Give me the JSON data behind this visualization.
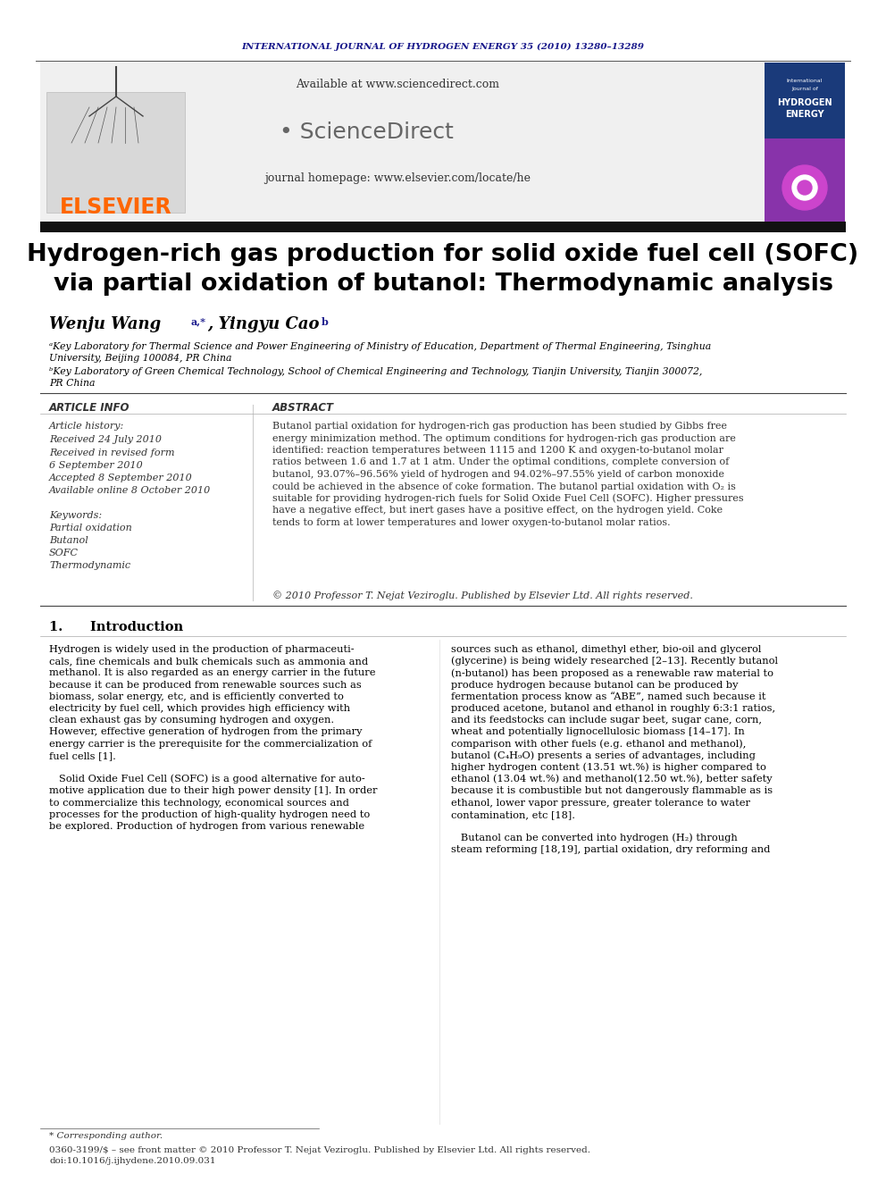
{
  "journal_header": "INTERNATIONAL JOURNAL OF HYDROGEN ENERGY 35 (2010) 13280–13289",
  "journal_header_color": "#1a1a8c",
  "available_text": "Available at www.sciencedirect.com",
  "journal_homepage": "journal homepage: www.elsevier.com/locate/he",
  "elsevier_color": "#ff6600",
  "title_line1": "Hydrogen-rich gas production for solid oxide fuel cell (SOFC)",
  "title_line2": "via partial oxidation of butanol: Thermodynamic analysis",
  "title_color": "#000000",
  "article_info_label": "ARTICLE INFO",
  "article_history_label": "Article history:",
  "keywords_label": "Keywords:",
  "keywords": [
    "Partial oxidation",
    "Butanol",
    "SOFC",
    "Thermodynamic"
  ],
  "abstract_label": "ABSTRACT",
  "abstract_text": "Butanol partial oxidation for hydrogen-rich gas production has been studied by Gibbs free\nenergy minimization method. The optimum conditions for hydrogen-rich gas production are\nidentified: reaction temperatures between 1115 and 1200 K and oxygen-to-butanol molar\nratios between 1.6 and 1.7 at 1 atm. Under the optimal conditions, complete conversion of\nbutanol, 93.07%–96.56% yield of hydrogen and 94.02%–97.55% yield of carbon monoxide\ncould be achieved in the absence of coke formation. The butanol partial oxidation with O₂ is\nsuitable for providing hydrogen-rich fuels for Solid Oxide Fuel Cell (SOFC). Higher pressures\nhave a negative effect, but inert gases have a positive effect, on the hydrogen yield. Coke\ntends to form at lower temperatures and lower oxygen-to-butanol molar ratios.",
  "copyright_text": "© 2010 Professor T. Nejat Veziroglu. Published by Elsevier Ltd. All rights reserved.",
  "section1_title": "1.      Introduction",
  "footnote_star": "* Corresponding author.",
  "issn": "0360-3199/$ – see front matter © 2010 Professor T. Nejat Veziroglu. Published by Elsevier Ltd. All rights reserved.",
  "doi": "doi:10.1016/j.ijhydene.2010.09.031",
  "bg_color": "#ffffff",
  "dark_bar_color": "#1a1a1a",
  "section_label_color": "#1a1a8c",
  "col1_lines": [
    "Hydrogen is widely used in the production of pharmaceuti-",
    "cals, fine chemicals and bulk chemicals such as ammonia and",
    "methanol. It is also regarded as an energy carrier in the future",
    "because it can be produced from renewable sources such as",
    "biomass, solar energy, etc, and is efficiently converted to",
    "electricity by fuel cell, which provides high efficiency with",
    "clean exhaust gas by consuming hydrogen and oxygen.",
    "However, effective generation of hydrogen from the primary",
    "energy carrier is the prerequisite for the commercialization of",
    "fuel cells [1].",
    "",
    "   Solid Oxide Fuel Cell (SOFC) is a good alternative for auto-",
    "motive application due to their high power density [1]. In order",
    "to commercialize this technology, economical sources and",
    "processes for the production of high-quality hydrogen need to",
    "be explored. Production of hydrogen from various renewable"
  ],
  "col2_lines": [
    "sources such as ethanol, dimethyl ether, bio-oil and glycerol",
    "(glycerine) is being widely researched [2–13]. Recently butanol",
    "(n-butanol) has been proposed as a renewable raw material to",
    "produce hydrogen because butanol can be produced by",
    "fermentation process know as “ABE”, named such because it",
    "produced acetone, butanol and ethanol in roughly 6:3:1 ratios,",
    "and its feedstocks can include sugar beet, sugar cane, corn,",
    "wheat and potentially lignocellulosic biomass [14–17]. In",
    "comparison with other fuels (e.g. ethanol and methanol),",
    "butanol (C₄H₉O) presents a series of advantages, including",
    "higher hydrogen content (13.51 wt.%) is higher compared to",
    "ethanol (13.04 wt.%) and methanol(12.50 wt.%), better safety",
    "because it is combustible but not dangerously flammable as is",
    "ethanol, lower vapor pressure, greater tolerance to water",
    "contamination, etc [18].",
    "",
    "   Butanol can be converted into hydrogen (H₂) through",
    "steam reforming [18,19], partial oxidation, dry reforming and"
  ]
}
